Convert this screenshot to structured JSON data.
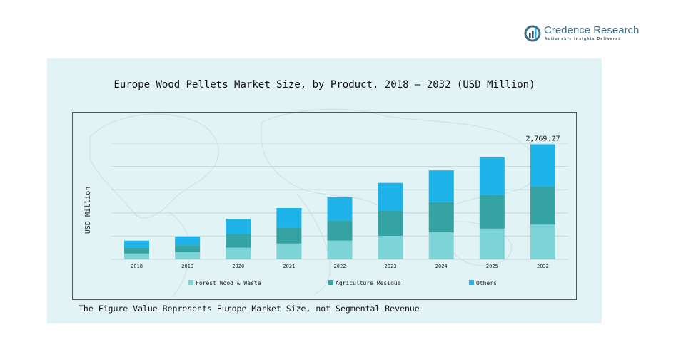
{
  "brand": {
    "name": "Credence Research",
    "tagline": "Actionable Insights Delivered"
  },
  "colors": {
    "panel_bg": "#e2f3f6",
    "forest": "#7dd4d6",
    "agriculture": "#35a3a3",
    "others": "#1eb4ea"
  },
  "footnote": "The Figure Value Represents Europe Market Size, not Segmental Revenue",
  "chart_data": {
    "type": "bar",
    "stacked": true,
    "title": "Europe Wood Pellets Market Size, by Product, 2018 – 2032 (USD Million)",
    "ylabel": "USD Million",
    "xlabel": "",
    "categories": [
      "2018",
      "2019",
      "2020",
      "2021",
      "2022",
      "2023",
      "2024",
      "2025",
      "2032"
    ],
    "series": [
      {
        "name": "Forest Wood & Waste",
        "color": "#7dd4d6",
        "values": [
          140,
          175,
          280,
          380,
          450,
          565,
          650,
          740,
          835
        ]
      },
      {
        "name": "Agriculture Residue",
        "color": "#35a3a3",
        "values": [
          145,
          165,
          325,
          385,
          490,
          610,
          725,
          810,
          920
        ]
      },
      {
        "name": "Others",
        "color": "#1eb4ea",
        "values": [
          165,
          210,
          370,
          470,
          555,
          665,
          765,
          905,
          1014.27
        ]
      }
    ],
    "data_labels": [
      {
        "category": "2032",
        "text": "2,769.27"
      }
    ],
    "ylim": [
      0,
      2880
    ],
    "grid": true,
    "legend": "bottom"
  }
}
